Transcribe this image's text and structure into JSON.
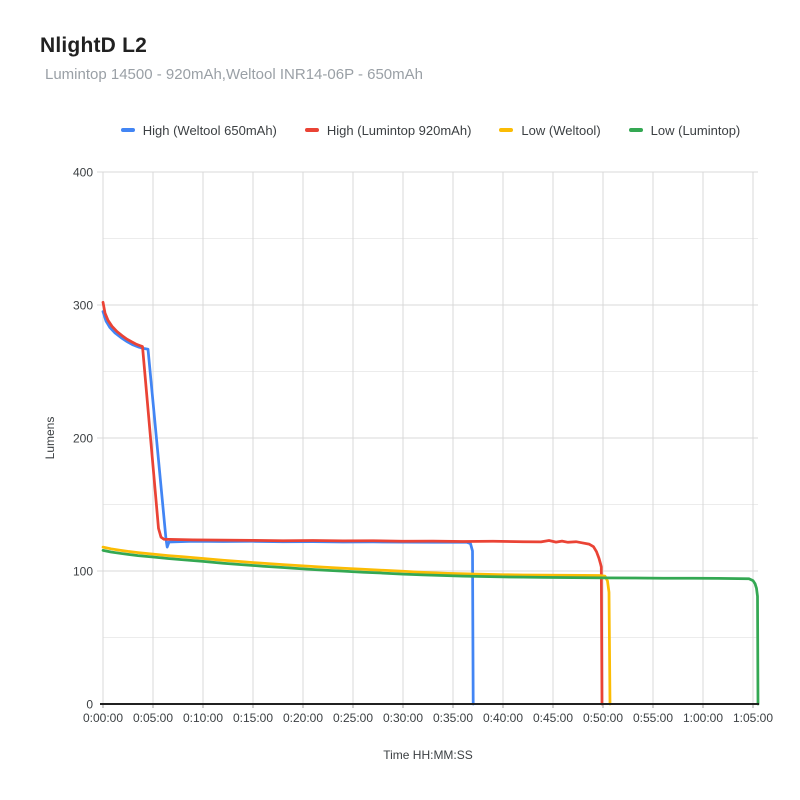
{
  "chart_data": {
    "type": "line",
    "title": "NlightD L2",
    "subtitle": "Lumintop 14500 - 920mAh,Weltool INR14-06P - 650mAh",
    "xlabel": "Time HH:MM:SS",
    "ylabel": "Lumens",
    "x_unit": "minutes",
    "xlim": [
      0,
      65.5
    ],
    "ylim": [
      0,
      400
    ],
    "grid": true,
    "legend_position": "top",
    "y_major_ticks": [
      0,
      100,
      200,
      300,
      400
    ],
    "y_minor_step": 50,
    "x_ticks": {
      "minutes": [
        0,
        5,
        10,
        15,
        20,
        25,
        30,
        35,
        40,
        45,
        50,
        55,
        60,
        65
      ],
      "labels": [
        "0:00:00",
        "0:05:00",
        "0:10:00",
        "0:15:00",
        "0:20:00",
        "0:25:00",
        "0:30:00",
        "0:35:00",
        "0:40:00",
        "0:45:00",
        "0:50:00",
        "0:55:00",
        "1:00:00",
        "1:05:00"
      ]
    },
    "series": [
      {
        "name": "High (Weltool 650mAh)",
        "color": "#4285F4",
        "points": [
          [
            0,
            295
          ],
          [
            0.3,
            288
          ],
          [
            0.7,
            283
          ],
          [
            1.2,
            279
          ],
          [
            1.8,
            275.5
          ],
          [
            2.4,
            272.5
          ],
          [
            3,
            270
          ],
          [
            3.6,
            268.3
          ],
          [
            4.1,
            267.3
          ],
          [
            4.5,
            266.8
          ],
          [
            6.3,
            124
          ],
          [
            6.42,
            118
          ],
          [
            6.6,
            121.8
          ],
          [
            9,
            122.4
          ],
          [
            12,
            122.2
          ],
          [
            15,
            122.3
          ],
          [
            18,
            122
          ],
          [
            21,
            122.1
          ],
          [
            24,
            121.8
          ],
          [
            27,
            121.9
          ],
          [
            30,
            121.7
          ],
          [
            33,
            121.6
          ],
          [
            36.4,
            121.6
          ],
          [
            36.75,
            120.6
          ],
          [
            36.95,
            115
          ],
          [
            37.02,
            0
          ]
        ]
      },
      {
        "name": "High (Lumintop 920mAh)",
        "color": "#EA4335",
        "points": [
          [
            0,
            302
          ],
          [
            0.2,
            294
          ],
          [
            0.5,
            288.5
          ],
          [
            0.9,
            284
          ],
          [
            1.4,
            280
          ],
          [
            1.9,
            277
          ],
          [
            2.4,
            274.3
          ],
          [
            2.9,
            272.2
          ],
          [
            3.3,
            270.6
          ],
          [
            3.7,
            269.4
          ],
          [
            3.95,
            268.7
          ],
          [
            5.55,
            132
          ],
          [
            5.8,
            125.5
          ],
          [
            6.1,
            123.8
          ],
          [
            9,
            123.4
          ],
          [
            12,
            123.2
          ],
          [
            15,
            123
          ],
          [
            18,
            122.8
          ],
          [
            21,
            122.9
          ],
          [
            24,
            122.6
          ],
          [
            27,
            122.7
          ],
          [
            30,
            122.4
          ],
          [
            33,
            122.5
          ],
          [
            36,
            122.2
          ],
          [
            39,
            122.3
          ],
          [
            42,
            122
          ],
          [
            43.8,
            121.9
          ],
          [
            44.6,
            122.9
          ],
          [
            45.3,
            121.7
          ],
          [
            45.9,
            122.5
          ],
          [
            46.5,
            121.6
          ],
          [
            47.3,
            122
          ],
          [
            47.9,
            121.2
          ],
          [
            48.6,
            120.2
          ],
          [
            49.05,
            118.3
          ],
          [
            49.35,
            114.5
          ],
          [
            49.6,
            109.5
          ],
          [
            49.75,
            105.5
          ],
          [
            49.83,
            103
          ],
          [
            49.9,
            0
          ]
        ]
      },
      {
        "name": "Low (Weltool)",
        "color": "#FBBC04",
        "points": [
          [
            0,
            118
          ],
          [
            0.8,
            116.7
          ],
          [
            1.6,
            115.7
          ],
          [
            2.5,
            114.7
          ],
          [
            3.5,
            113.8
          ],
          [
            5,
            112.7
          ],
          [
            6.5,
            111.6
          ],
          [
            8,
            110.7
          ],
          [
            10,
            109.4
          ],
          [
            12,
            108.1
          ],
          [
            14,
            106.9
          ],
          [
            16,
            105.8
          ],
          [
            18,
            104.8
          ],
          [
            20,
            103.8
          ],
          [
            22,
            102.9
          ],
          [
            24,
            102.1
          ],
          [
            26,
            101.3
          ],
          [
            28,
            100.5
          ],
          [
            30,
            99.8
          ],
          [
            31.5,
            99.2
          ],
          [
            33,
            98.7
          ],
          [
            34.5,
            98.2
          ],
          [
            36,
            97.9
          ],
          [
            38,
            97.5
          ],
          [
            40,
            97.2
          ],
          [
            42,
            97
          ],
          [
            44,
            96.9
          ],
          [
            46,
            96.8
          ],
          [
            48,
            96.7
          ],
          [
            49.6,
            96.6
          ],
          [
            50.2,
            96.2
          ],
          [
            50.45,
            92.5
          ],
          [
            50.6,
            84
          ],
          [
            50.7,
            0
          ]
        ]
      },
      {
        "name": "Low (Lumintop)",
        "color": "#34A853",
        "points": [
          [
            0,
            115.5
          ],
          [
            0.8,
            114.3
          ],
          [
            1.6,
            113.4
          ],
          [
            2.5,
            112.5
          ],
          [
            3.5,
            111.6
          ],
          [
            5,
            110.5
          ],
          [
            6.5,
            109.4
          ],
          [
            8,
            108.5
          ],
          [
            10,
            107.2
          ],
          [
            12,
            105.9
          ],
          [
            14,
            104.7
          ],
          [
            16,
            103.6
          ],
          [
            18,
            102.6
          ],
          [
            20,
            101.6
          ],
          [
            22,
            100.7
          ],
          [
            24,
            99.9
          ],
          [
            26,
            99.1
          ],
          [
            28,
            98.4
          ],
          [
            30,
            97.7
          ],
          [
            32,
            97.1
          ],
          [
            34,
            96.6
          ],
          [
            36,
            96.2
          ],
          [
            38,
            95.9
          ],
          [
            40,
            95.6
          ],
          [
            42,
            95.4
          ],
          [
            44,
            95.2
          ],
          [
            47,
            95
          ],
          [
            50,
            94.8
          ],
          [
            53,
            94.7
          ],
          [
            56,
            94.6
          ],
          [
            59,
            94.5
          ],
          [
            61.5,
            94.4
          ],
          [
            63.5,
            94.3
          ],
          [
            64.6,
            94.1
          ],
          [
            65,
            92.8
          ],
          [
            65.2,
            90.5
          ],
          [
            65.35,
            87
          ],
          [
            65.45,
            81
          ],
          [
            65.5,
            0
          ]
        ]
      }
    ],
    "style": {
      "title_color": "#212121",
      "subtitle_color": "#9aa0a6",
      "tick_text_color": "#3c4043",
      "grid_major_color": "#d9d9d9",
      "grid_minor_color": "#ececec",
      "axis_color": "#212121",
      "tick_mark_color": "#9e9e9e"
    }
  }
}
